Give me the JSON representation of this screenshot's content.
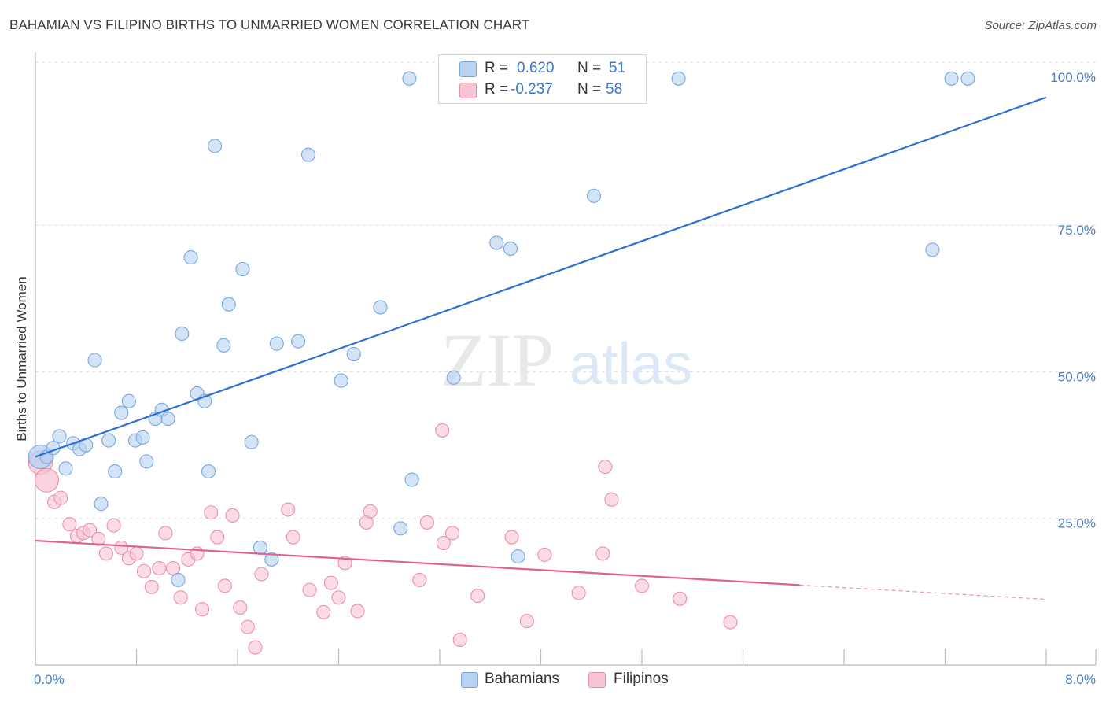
{
  "title": "BAHAMIAN VS FILIPINO BIRTHS TO UNMARRIED WOMEN CORRELATION CHART",
  "source": "Source: ZipAtlas.com",
  "watermark": {
    "zip": "ZIP",
    "atlas": "atlas"
  },
  "legend": {
    "r_label": "R =",
    "n_label": "N =",
    "series": [
      {
        "name": "Bahamians",
        "r": "0.620",
        "n": "51"
      },
      {
        "name": "Filipinos",
        "r": "-0.237",
        "n": "58"
      }
    ]
  },
  "colors": {
    "bahamian_fill": "#b8d2f2",
    "bahamian_stroke": "#7aa5de",
    "bahamian_line": "#2e6fd0",
    "filipino_fill": "#f8c4d3",
    "filipino_stroke": "#ec8fab",
    "filipino_line": "#e0618e",
    "grid": "#dddddd",
    "axis": "#bbbbbb",
    "tick_text": "#4a7cc7"
  },
  "chart_data": {
    "type": "scatter",
    "title": "BAHAMIAN VS FILIPINO BIRTHS TO UNMARRIED WOMEN CORRELATION CHART",
    "xlabel": "",
    "ylabel": "Births to Unmarried Women",
    "xlim": [
      0,
      8
    ],
    "ylim": [
      0,
      104
    ],
    "x_tick_labels": [
      "0.0%",
      "8.0%"
    ],
    "y_ticks": [
      25,
      50,
      75,
      100
    ],
    "y_tick_labels": [
      "25.0%",
      "50.0%",
      "75.0%",
      "100.0%"
    ],
    "grid": true,
    "series": [
      {
        "name": "Bahamians",
        "trend": {
          "x": [
            0,
            8
          ],
          "y": [
            35.5,
            96.8
          ],
          "dashed_from": null
        },
        "points": [
          {
            "x": 0.04,
            "y": 35.5,
            "big": true
          },
          {
            "x": 0.09,
            "y": 35.5
          },
          {
            "x": 0.14,
            "y": 37
          },
          {
            "x": 0.19,
            "y": 39
          },
          {
            "x": 0.24,
            "y": 33.5
          },
          {
            "x": 0.3,
            "y": 37.8
          },
          {
            "x": 0.35,
            "y": 36.8
          },
          {
            "x": 0.4,
            "y": 37.5
          },
          {
            "x": 0.47,
            "y": 52
          },
          {
            "x": 0.52,
            "y": 27.5
          },
          {
            "x": 0.58,
            "y": 38.3
          },
          {
            "x": 0.63,
            "y": 33
          },
          {
            "x": 0.68,
            "y": 43
          },
          {
            "x": 0.74,
            "y": 45
          },
          {
            "x": 0.79,
            "y": 38.3
          },
          {
            "x": 0.85,
            "y": 38.8
          },
          {
            "x": 0.88,
            "y": 34.7
          },
          {
            "x": 0.95,
            "y": 42
          },
          {
            "x": 1.0,
            "y": 43.5
          },
          {
            "x": 1.05,
            "y": 42
          },
          {
            "x": 1.13,
            "y": 14.5
          },
          {
            "x": 1.16,
            "y": 56.5
          },
          {
            "x": 1.23,
            "y": 69.5
          },
          {
            "x": 1.28,
            "y": 46.3
          },
          {
            "x": 1.34,
            "y": 45
          },
          {
            "x": 1.37,
            "y": 33
          },
          {
            "x": 1.42,
            "y": 88.5
          },
          {
            "x": 1.49,
            "y": 54.5
          },
          {
            "x": 1.53,
            "y": 61.5
          },
          {
            "x": 1.64,
            "y": 67.5
          },
          {
            "x": 1.71,
            "y": 38
          },
          {
            "x": 1.78,
            "y": 20
          },
          {
            "x": 1.87,
            "y": 18
          },
          {
            "x": 1.91,
            "y": 54.8
          },
          {
            "x": 2.08,
            "y": 55.2
          },
          {
            "x": 2.16,
            "y": 87
          },
          {
            "x": 2.42,
            "y": 48.5
          },
          {
            "x": 2.52,
            "y": 53
          },
          {
            "x": 2.73,
            "y": 61
          },
          {
            "x": 2.89,
            "y": 23.3
          },
          {
            "x": 2.98,
            "y": 31.6
          },
          {
            "x": 2.96,
            "y": 100
          },
          {
            "x": 3.31,
            "y": 49
          },
          {
            "x": 3.65,
            "y": 72
          },
          {
            "x": 3.76,
            "y": 71
          },
          {
            "x": 3.82,
            "y": 18.5
          },
          {
            "x": 4.42,
            "y": 80
          },
          {
            "x": 5.09,
            "y": 100
          },
          {
            "x": 7.1,
            "y": 70.8
          },
          {
            "x": 7.25,
            "y": 100
          },
          {
            "x": 7.38,
            "y": 100
          }
        ]
      },
      {
        "name": "Filipinos",
        "trend": {
          "x": [
            0,
            8
          ],
          "y": [
            21.2,
            11.2
          ],
          "dashed_from": 6.05
        },
        "points": [
          {
            "x": 0.04,
            "y": 34.5,
            "big": true
          },
          {
            "x": 0.09,
            "y": 31.5,
            "big": true
          },
          {
            "x": 0.15,
            "y": 27.8
          },
          {
            "x": 0.2,
            "y": 28.5
          },
          {
            "x": 0.27,
            "y": 24
          },
          {
            "x": 0.33,
            "y": 22
          },
          {
            "x": 0.38,
            "y": 22.5
          },
          {
            "x": 0.43,
            "y": 23
          },
          {
            "x": 0.5,
            "y": 21.5
          },
          {
            "x": 0.56,
            "y": 19
          },
          {
            "x": 0.62,
            "y": 23.8
          },
          {
            "x": 0.68,
            "y": 20
          },
          {
            "x": 0.74,
            "y": 18.2
          },
          {
            "x": 0.8,
            "y": 19
          },
          {
            "x": 0.86,
            "y": 16
          },
          {
            "x": 0.92,
            "y": 13.3
          },
          {
            "x": 0.98,
            "y": 16.5
          },
          {
            "x": 1.03,
            "y": 22.5
          },
          {
            "x": 1.09,
            "y": 16.5
          },
          {
            "x": 1.15,
            "y": 11.5
          },
          {
            "x": 1.21,
            "y": 18
          },
          {
            "x": 1.28,
            "y": 19
          },
          {
            "x": 1.32,
            "y": 9.5
          },
          {
            "x": 1.39,
            "y": 26
          },
          {
            "x": 1.44,
            "y": 21.8
          },
          {
            "x": 1.5,
            "y": 13.5
          },
          {
            "x": 1.56,
            "y": 25.5
          },
          {
            "x": 1.62,
            "y": 9.8
          },
          {
            "x": 1.68,
            "y": 6.5
          },
          {
            "x": 1.74,
            "y": 3
          },
          {
            "x": 1.79,
            "y": 15.5
          },
          {
            "x": 2.0,
            "y": 26.5
          },
          {
            "x": 2.04,
            "y": 21.8
          },
          {
            "x": 2.17,
            "y": 12.8
          },
          {
            "x": 2.28,
            "y": 9
          },
          {
            "x": 2.34,
            "y": 14
          },
          {
            "x": 2.4,
            "y": 11.5
          },
          {
            "x": 2.45,
            "y": 17.4
          },
          {
            "x": 2.55,
            "y": 9.2
          },
          {
            "x": 2.62,
            "y": 24.3
          },
          {
            "x": 2.65,
            "y": 26.2
          },
          {
            "x": 3.04,
            "y": 14.5
          },
          {
            "x": 3.1,
            "y": 24.3
          },
          {
            "x": 3.22,
            "y": 40
          },
          {
            "x": 3.23,
            "y": 20.8
          },
          {
            "x": 3.3,
            "y": 22.5
          },
          {
            "x": 3.36,
            "y": 4.3
          },
          {
            "x": 3.5,
            "y": 11.8
          },
          {
            "x": 3.77,
            "y": 21.8
          },
          {
            "x": 3.89,
            "y": 7.5
          },
          {
            "x": 4.03,
            "y": 18.8
          },
          {
            "x": 4.3,
            "y": 12.3
          },
          {
            "x": 4.49,
            "y": 19
          },
          {
            "x": 4.51,
            "y": 33.8
          },
          {
            "x": 4.56,
            "y": 28.2
          },
          {
            "x": 4.8,
            "y": 13.5
          },
          {
            "x": 5.1,
            "y": 11.3
          },
          {
            "x": 5.5,
            "y": 7.3
          }
        ]
      }
    ]
  }
}
